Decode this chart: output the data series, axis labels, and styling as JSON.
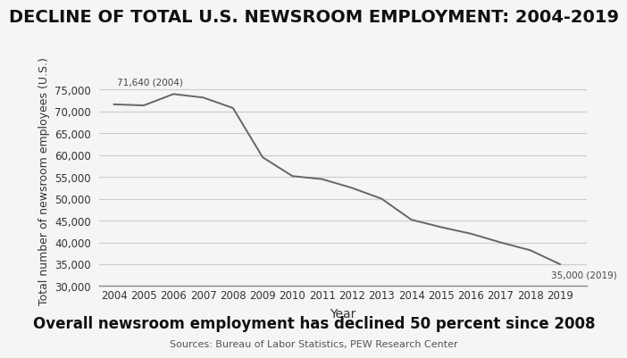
{
  "title": "DECLINE OF TOTAL U.S. NEWSROOM EMPLOYMENT: 2004-2019",
  "xlabel": "Year",
  "ylabel": "Total number of newsroom employees (U.S.)",
  "years": [
    2004,
    2005,
    2006,
    2007,
    2008,
    2009,
    2010,
    2011,
    2012,
    2013,
    2014,
    2015,
    2016,
    2017,
    2018,
    2019
  ],
  "values": [
    71640,
    71400,
    74000,
    73200,
    70800,
    59500,
    55200,
    54500,
    52500,
    50000,
    45200,
    43500,
    42000,
    40000,
    38200,
    35000
  ],
  "annotation_start": "71,640 (2004)",
  "annotation_end": "35,000 (2019)",
  "ylim_min": 30000,
  "ylim_max": 78000,
  "yticks": [
    30000,
    35000,
    40000,
    45000,
    50000,
    55000,
    60000,
    65000,
    70000,
    75000
  ],
  "subtitle": "Overall newsroom employment has declined 50 percent since 2008",
  "source": "Sources: Bureau of Labor Statistics, PEW Research Center",
  "line_color": "#666666",
  "background_color": "#f5f5f5",
  "grid_color": "#cccccc",
  "title_fontsize": 14,
  "subtitle_fontsize": 12,
  "source_fontsize": 8,
  "axis_fontsize": 9,
  "tick_fontsize": 8.5
}
